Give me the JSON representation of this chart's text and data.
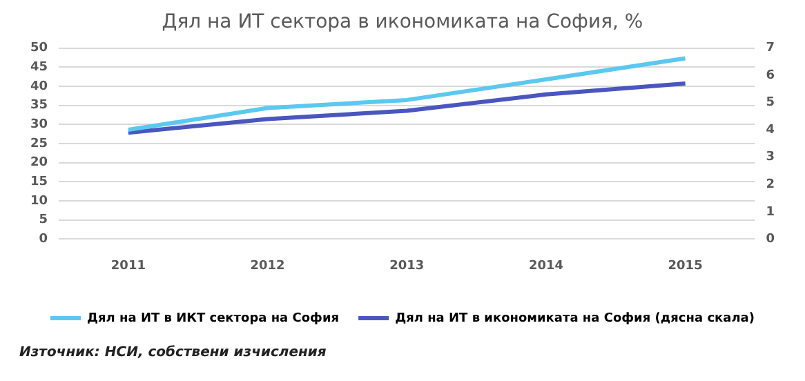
{
  "chart_data": {
    "type": "line",
    "title": "Дял на ИТ сектора в икономиката на София, %",
    "categories": [
      "2011",
      "2012",
      "2013",
      "2014",
      "2015"
    ],
    "series": [
      {
        "name": "Дял на ИТ в ИКТ сектора на София",
        "color": "#5bc8f0",
        "values": [
          28.6,
          34.3,
          36.4,
          41.8,
          47.3
        ]
      },
      {
        "name": "Дял на ИТ в икономиката на София (дясна скала)",
        "color": "#4a56c0",
        "axis": "y2",
        "values": [
          3.9,
          4.4,
          4.7,
          5.3,
          5.7
        ]
      }
    ],
    "ylim": [
      0,
      50
    ],
    "yticks": [
      0,
      5,
      10,
      15,
      20,
      25,
      30,
      35,
      40,
      45,
      50
    ],
    "y2lim": [
      0,
      7
    ],
    "y2ticks": [
      0,
      1,
      2,
      3,
      4,
      5,
      6,
      7
    ],
    "grid": "y",
    "legend": "bottom",
    "marker": "none",
    "line_style": "solid",
    "annotations": [
      "Източник: НСИ, собствени изчисления"
    ]
  }
}
